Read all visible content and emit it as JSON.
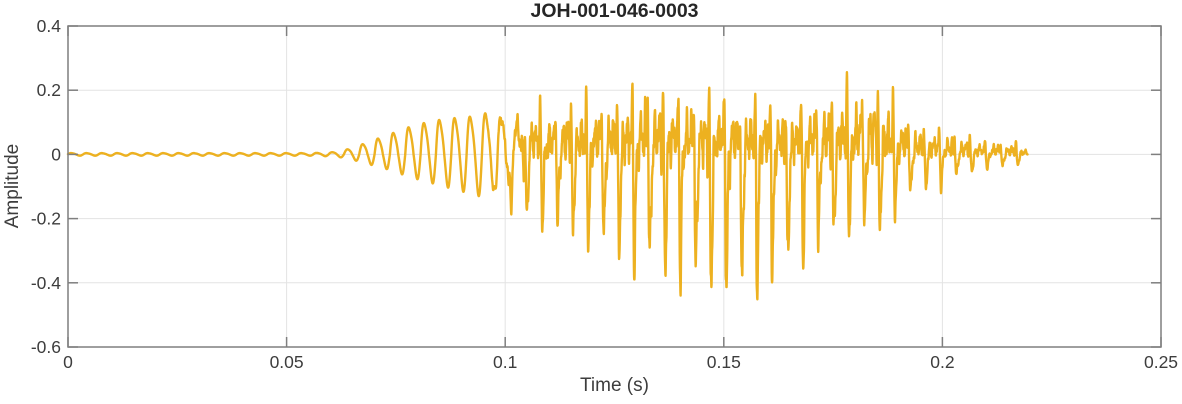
{
  "chart_data": {
    "type": "line",
    "title": "JOH-001-046-0003",
    "xlabel": "Time (s)",
    "ylabel": "Amplitude",
    "xlim": [
      0,
      0.25
    ],
    "ylim": [
      -0.6,
      0.4
    ],
    "xticks": [
      0,
      0.05,
      0.1,
      0.15,
      0.2,
      0.25
    ],
    "xtick_labels": [
      "0",
      "0.05",
      "0.1",
      "0.15",
      "0.2",
      "0.25"
    ],
    "yticks": [
      -0.6,
      -0.4,
      -0.2,
      0,
      0.2,
      0.4
    ],
    "ytick_labels": [
      "-0.6",
      "-0.4",
      "-0.2",
      "0",
      "0.2",
      "0.4"
    ],
    "grid": true,
    "legend": false,
    "colors": {
      "line": "#EDB120",
      "axis": "#7F7F7F",
      "grid": "#E3E3E3",
      "tick_text": "#3D3D3D",
      "title_text": "#262626",
      "background": "#FFFFFF"
    },
    "signal": {
      "description": "Speech-like acoustic waveform; silent until ~0.06 s, growing ~285 Hz oscillation, strong asymmetric glottal pulses with negative spikes peaking -0.57 near t=0.153 s, positive spikes to +0.30 near t=0.183 s, noisy decay ending ~0.22 s",
      "t_start": 0,
      "t_end": 0.2195,
      "f0_hz": 285,
      "envelope_t": [
        0.0,
        0.055,
        0.06,
        0.063,
        0.066,
        0.07,
        0.074,
        0.078,
        0.082,
        0.086,
        0.09,
        0.094,
        0.098,
        0.102,
        0.106,
        0.11,
        0.114,
        0.118,
        0.122,
        0.126,
        0.13,
        0.134,
        0.138,
        0.142,
        0.146,
        0.15,
        0.153,
        0.156,
        0.16,
        0.164,
        0.168,
        0.172,
        0.176,
        0.18,
        0.183,
        0.186,
        0.189,
        0.192,
        0.196,
        0.2,
        0.204,
        0.208,
        0.212,
        0.216,
        0.219,
        0.2195
      ],
      "envelope_upper": [
        0.004,
        0.004,
        0.006,
        0.012,
        0.025,
        0.045,
        0.065,
        0.085,
        0.1,
        0.11,
        0.115,
        0.12,
        0.15,
        0.19,
        0.2,
        0.19,
        0.21,
        0.21,
        0.22,
        0.23,
        0.26,
        0.27,
        0.25,
        0.24,
        0.23,
        0.24,
        0.23,
        0.22,
        0.21,
        0.2,
        0.21,
        0.24,
        0.26,
        0.28,
        0.3,
        0.29,
        0.2,
        0.15,
        0.11,
        0.1,
        0.08,
        0.06,
        0.055,
        0.05,
        0.03,
        0.0
      ],
      "envelope_lower": [
        0.004,
        0.004,
        0.006,
        0.01,
        0.02,
        0.035,
        0.05,
        0.07,
        0.085,
        0.1,
        0.115,
        0.13,
        0.16,
        0.26,
        0.28,
        0.26,
        0.3,
        0.33,
        0.35,
        0.39,
        0.42,
        0.44,
        0.47,
        0.48,
        0.51,
        0.53,
        0.57,
        0.52,
        0.5,
        0.46,
        0.4,
        0.34,
        0.31,
        0.29,
        0.28,
        0.3,
        0.22,
        0.17,
        0.13,
        0.12,
        0.08,
        0.06,
        0.05,
        0.045,
        0.03,
        0.0
      ]
    }
  }
}
